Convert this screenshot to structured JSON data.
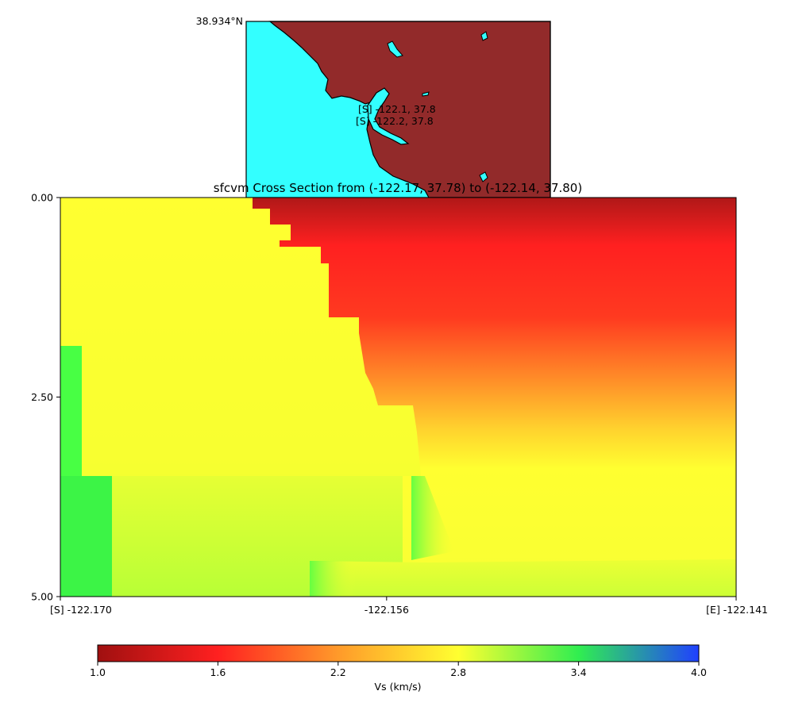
{
  "inset_map": {
    "lat_label": "38.934°N",
    "points": [
      {
        "text": "[S] -122.1, 37.8"
      },
      {
        "text": "[S] -122.2, 37.8"
      }
    ],
    "colors": {
      "water": "#33ffff",
      "land": "#922a2a",
      "coast": "#000000"
    }
  },
  "chart_data": {
    "type": "heatmap",
    "title": "sfcvm Cross Section from (-122.17, 37.78) to (-122.14, 37.80)",
    "xlabel": "",
    "ylabel": "",
    "x_ticks": [
      {
        "value": -122.17,
        "label": "[S] -122.170"
      },
      {
        "value": -122.156,
        "label": "-122.156"
      },
      {
        "value": -122.141,
        "label": "[E] -122.141"
      }
    ],
    "y_ticks": [
      {
        "value": 0.0,
        "label": "0.00"
      },
      {
        "value": 2.5,
        "label": "2.50"
      },
      {
        "value": 5.0,
        "label": "5.00"
      }
    ],
    "xlim": [
      -122.17,
      -122.141
    ],
    "ylim": [
      5.0,
      0.0
    ],
    "y_inverted": true,
    "grid": false,
    "colorbar": {
      "label": "Vs (km/s)",
      "range": [
        1.0,
        4.0
      ],
      "ticks": [
        "1.0",
        "1.6",
        "2.2",
        "2.8",
        "3.4",
        "4.0"
      ],
      "stops": [
        {
          "value": 1.0,
          "color": "#a01010"
        },
        {
          "value": 1.6,
          "color": "#ff2020"
        },
        {
          "value": 2.2,
          "color": "#ff9a2a"
        },
        {
          "value": 2.8,
          "color": "#ffff30"
        },
        {
          "value": 3.4,
          "color": "#30ee50"
        },
        {
          "value": 4.0,
          "color": "#2040ff"
        }
      ]
    },
    "regions": [
      {
        "zone": "upper-right sediment",
        "vs_top": 1.05,
        "vs_bottom": 2.75
      },
      {
        "zone": "left rock block",
        "vs": 2.8
      },
      {
        "zone": "lower-left rock",
        "vs_top": 2.95,
        "vs_bottom": 3.15
      },
      {
        "zone": "far-left high-velocity strip",
        "vs": 3.45
      },
      {
        "zone": "bottom basin",
        "vs_top": 2.8,
        "vs_bottom": 3.0
      }
    ]
  }
}
